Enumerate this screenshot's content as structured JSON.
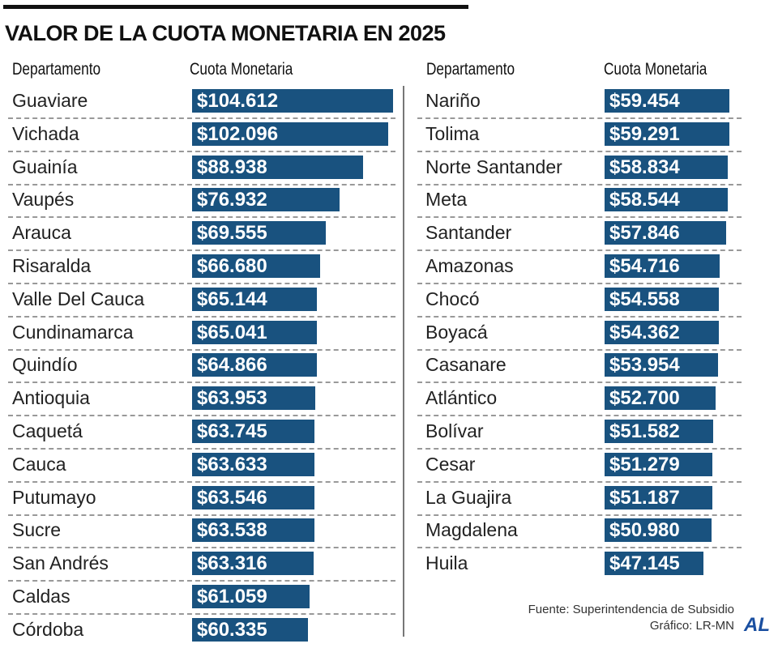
{
  "chart_data": {
    "type": "bar",
    "title": "VALOR DE LA CUOTA MONETARIA EN 2025",
    "columns": [
      {
        "header_category": "Departamento",
        "header_value": "Cuota Monetaria",
        "categories": [
          "Guaviare",
          "Vichada",
          "Guainía",
          "Vaupés",
          "Arauca",
          "Risaralda",
          "Valle Del Cauca",
          "Cundinamarca",
          "Quindío",
          "Antioquia",
          "Caquetá",
          "Cauca",
          "Putumayo",
          "Sucre",
          "San Andrés",
          "Caldas",
          "Córdoba"
        ],
        "values": [
          104612,
          102096,
          88938,
          76932,
          69555,
          66680,
          65144,
          65041,
          64866,
          63953,
          63745,
          63633,
          63546,
          63538,
          63316,
          61059,
          60335
        ],
        "labels": [
          "$104.612",
          "$102.096",
          "$88.938",
          "$76.932",
          "$69.555",
          "$66.680",
          "$65.144",
          "$65.041",
          "$64.866",
          "$63.953",
          "$63.745",
          "$63.633",
          "$63.546",
          "$63.538",
          "$63.316",
          "$61.059",
          "$60.335"
        ]
      },
      {
        "header_category": "Departamento",
        "header_value": "Cuota Monetaria",
        "categories": [
          "Nariño",
          "Tolima",
          "Norte Santander",
          "Meta",
          "Santander",
          "Amazonas",
          "Chocó",
          "Boyacá",
          "Casanare",
          "Atlántico",
          "Bolívar",
          "Cesar",
          "La Guajira",
          "Magdalena",
          "Huila"
        ],
        "values": [
          59454,
          59291,
          58834,
          58544,
          57846,
          54716,
          54558,
          54362,
          53954,
          52700,
          51582,
          51279,
          51187,
          50980,
          47145
        ],
        "labels": [
          "$59.454",
          "$59.291",
          "$58.834",
          "$58.544",
          "$57.846",
          "$54.716",
          "$54.558",
          "$54.362",
          "$53.954",
          "$52.700",
          "$51.582",
          "$51.279",
          "$51.187",
          "$50.980",
          "$47.145"
        ]
      }
    ],
    "bar_color": "#19527f"
  },
  "footer": {
    "source": "Fuente: Superintendencia de Subsidio",
    "graphic": "Gráfico: LR-MN",
    "logo": "AL"
  }
}
